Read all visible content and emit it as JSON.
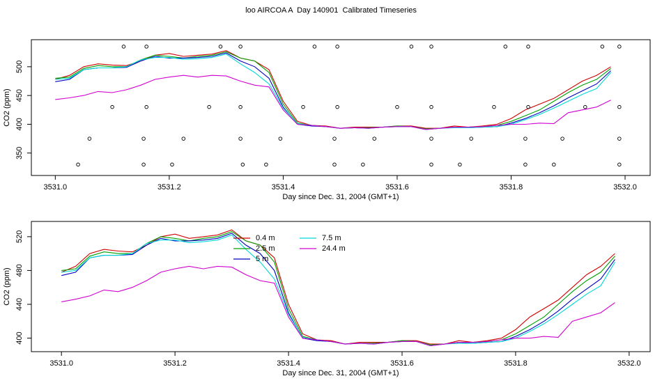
{
  "chart_data": [
    {
      "type": "line",
      "title": "loo AIRCOA A  Day 140901  Calibrated Timeseries",
      "xlabel": "Day since Dec. 31, 2004 (GMT+1)",
      "ylabel": "CO2 (ppm)",
      "x": [
        3531.0,
        3531.025,
        3531.05,
        3531.075,
        3531.1,
        3531.125,
        3531.15,
        3531.175,
        3531.2,
        3531.225,
        3531.25,
        3531.275,
        3531.3,
        3531.325,
        3531.35,
        3531.375,
        3531.4,
        3531.425,
        3531.45,
        3531.475,
        3531.5,
        3531.525,
        3531.55,
        3531.575,
        3531.6,
        3531.625,
        3531.65,
        3531.675,
        3531.7,
        3531.725,
        3531.75,
        3531.775,
        3531.8,
        3531.825,
        3531.85,
        3531.875,
        3531.9,
        3531.925,
        3531.95,
        3531.975
      ],
      "series": [
        {
          "name": "0.4 m",
          "color": "#d00000",
          "values": [
            478,
            485,
            500,
            505,
            503,
            502,
            510,
            520,
            523,
            518,
            520,
            522,
            528,
            515,
            510,
            495,
            440,
            405,
            398,
            397,
            393,
            395,
            395,
            395,
            397,
            397,
            393,
            393,
            397,
            395,
            397,
            400,
            410,
            425,
            435,
            445,
            460,
            475,
            485,
            500
          ]
        },
        {
          "name": "2.5 m",
          "color": "#00a000",
          "values": [
            480,
            482,
            497,
            502,
            500,
            500,
            512,
            520,
            518,
            515,
            518,
            520,
            526,
            515,
            510,
            490,
            435,
            402,
            398,
            396,
            393,
            394,
            394,
            395,
            397,
            396,
            392,
            393,
            395,
            395,
            396,
            398,
            405,
            415,
            425,
            440,
            455,
            468,
            478,
            497
          ]
        },
        {
          "name": "5 m",
          "color": "#0000c0",
          "values": [
            474,
            478,
            495,
            498,
            498,
            499,
            510,
            518,
            515,
            515,
            516,
            518,
            524,
            510,
            500,
            480,
            430,
            400,
            397,
            396,
            393,
            394,
            393,
            395,
            396,
            396,
            391,
            393,
            395,
            394,
            395,
            396,
            402,
            410,
            420,
            432,
            446,
            458,
            470,
            493
          ]
        },
        {
          "name": "7.5 m",
          "color": "#00d8d8",
          "values": [
            478,
            480,
            495,
            498,
            498,
            500,
            512,
            516,
            516,
            513,
            514,
            516,
            522,
            505,
            490,
            470,
            428,
            401,
            398,
            396,
            393,
            394,
            393,
            395,
            396,
            396,
            391,
            393,
            394,
            394,
            395,
            396,
            400,
            408,
            417,
            428,
            440,
            452,
            462,
            490
          ]
        },
        {
          "name": "24.4 m",
          "color": "#d000d0",
          "values": [
            443,
            446,
            450,
            457,
            455,
            460,
            468,
            478,
            482,
            485,
            482,
            485,
            484,
            475,
            468,
            465,
            425,
            400,
            398,
            396,
            393,
            394,
            393,
            395,
            396,
            396,
            391,
            393,
            395,
            395,
            396,
            398,
            400,
            400,
            402,
            401,
            420,
            425,
            430,
            442
          ]
        }
      ],
      "points": {
        "x": [
          3531.04,
          3531.06,
          3531.1,
          3531.12,
          3531.155,
          3531.155,
          3531.16,
          3531.16,
          3531.205,
          3531.225,
          3531.27,
          3531.29,
          3531.329,
          3531.325,
          3531.325,
          3531.325,
          3531.37,
          3531.395,
          3531.435,
          3531.455,
          3531.49,
          3531.49,
          3531.495,
          3531.495,
          3531.54,
          3531.56,
          3531.6,
          3531.625,
          3531.66,
          3531.66,
          3531.66,
          3531.66,
          3531.71,
          3531.73,
          3531.77,
          3531.79,
          3531.825,
          3531.825,
          3531.83,
          3531.83,
          3531.875,
          3531.89,
          3531.93,
          3531.96,
          3531.99,
          3531.99,
          3531.99,
          3531.99
        ],
        "y": [
          330,
          375,
          430,
          535,
          330,
          375,
          430,
          535,
          330,
          375,
          430,
          535,
          330,
          375,
          430,
          535,
          330,
          375,
          430,
          535,
          330,
          375,
          430,
          535,
          330,
          375,
          430,
          535,
          330,
          375,
          430,
          535,
          330,
          375,
          430,
          535,
          330,
          375,
          430,
          535,
          330,
          375,
          430,
          535,
          330,
          375,
          430,
          535
        ]
      },
      "xlim": [
        3530.958,
        3532.044
      ],
      "ylim": [
        311,
        547
      ],
      "xticks": [
        {
          "value": 3531.0,
          "label": "3531.0"
        },
        {
          "value": 3531.2,
          "label": "3531.2"
        },
        {
          "value": 3531.4,
          "label": "3531.4"
        },
        {
          "value": 3531.6,
          "label": "3531.6"
        },
        {
          "value": 3531.8,
          "label": "3531.8"
        },
        {
          "value": 3532.0,
          "label": "3532.0"
        }
      ],
      "yticks": [
        350,
        400,
        450,
        500
      ]
    },
    {
      "type": "line",
      "xlabel": "Day since Dec. 31, 2004 (GMT+1)",
      "ylabel": "CO2 (ppm)",
      "x": [
        3531.0,
        3531.025,
        3531.05,
        3531.075,
        3531.1,
        3531.125,
        3531.15,
        3531.175,
        3531.2,
        3531.225,
        3531.25,
        3531.275,
        3531.3,
        3531.325,
        3531.35,
        3531.375,
        3531.4,
        3531.425,
        3531.45,
        3531.475,
        3531.5,
        3531.525,
        3531.55,
        3531.575,
        3531.6,
        3531.625,
        3531.65,
        3531.675,
        3531.7,
        3531.725,
        3531.75,
        3531.775,
        3531.8,
        3531.825,
        3531.85,
        3531.875,
        3531.9,
        3531.925,
        3531.95,
        3531.975
      ],
      "series": [
        {
          "name": "0.4 m",
          "color": "#d00000",
          "values": [
            478,
            485,
            500,
            505,
            503,
            502,
            510,
            520,
            523,
            518,
            520,
            522,
            528,
            515,
            510,
            495,
            440,
            405,
            398,
            397,
            393,
            395,
            395,
            395,
            397,
            397,
            393,
            393,
            397,
            395,
            397,
            400,
            410,
            425,
            435,
            445,
            460,
            475,
            485,
            500
          ]
        },
        {
          "name": "2.5 m",
          "color": "#00a000",
          "values": [
            480,
            482,
            497,
            502,
            500,
            500,
            512,
            520,
            518,
            515,
            518,
            520,
            526,
            515,
            510,
            490,
            435,
            402,
            398,
            396,
            393,
            394,
            394,
            395,
            397,
            396,
            392,
            393,
            395,
            395,
            396,
            398,
            405,
            415,
            425,
            440,
            455,
            468,
            478,
            497
          ]
        },
        {
          "name": "5 m",
          "color": "#0000c0",
          "values": [
            474,
            478,
            495,
            498,
            498,
            499,
            510,
            518,
            515,
            515,
            516,
            518,
            524,
            510,
            500,
            480,
            430,
            400,
            397,
            396,
            393,
            394,
            393,
            395,
            396,
            396,
            391,
            393,
            395,
            394,
            395,
            396,
            402,
            410,
            420,
            432,
            446,
            458,
            470,
            493
          ]
        },
        {
          "name": "7.5 m",
          "color": "#00d8d8",
          "values": [
            478,
            480,
            495,
            498,
            498,
            500,
            512,
            516,
            516,
            513,
            514,
            516,
            522,
            505,
            490,
            470,
            428,
            401,
            398,
            396,
            393,
            394,
            393,
            395,
            396,
            396,
            391,
            393,
            394,
            394,
            395,
            396,
            400,
            408,
            417,
            428,
            440,
            452,
            462,
            490
          ]
        },
        {
          "name": "24.4 m",
          "color": "#d000d0",
          "values": [
            443,
            446,
            450,
            457,
            455,
            460,
            468,
            478,
            482,
            485,
            482,
            485,
            484,
            475,
            468,
            465,
            425,
            400,
            398,
            396,
            393,
            394,
            393,
            395,
            396,
            396,
            391,
            393,
            395,
            395,
            396,
            398,
            400,
            400,
            402,
            401,
            420,
            425,
            430,
            442
          ]
        }
      ],
      "legend": "top-center",
      "xlim": [
        3530.947,
        3532.037
      ],
      "ylim": [
        384,
        538
      ],
      "xticks": [
        {
          "value": 3531.0,
          "label": "3531.0"
        },
        {
          "value": 3531.2,
          "label": "3531.2"
        },
        {
          "value": 3531.4,
          "label": "3531.4"
        },
        {
          "value": 3531.6,
          "label": "3531.6"
        },
        {
          "value": 3531.8,
          "label": "3531.8"
        },
        {
          "value": 3532.0,
          "label": "3532.0"
        }
      ],
      "yticks": [
        400,
        440,
        480,
        520
      ]
    }
  ]
}
